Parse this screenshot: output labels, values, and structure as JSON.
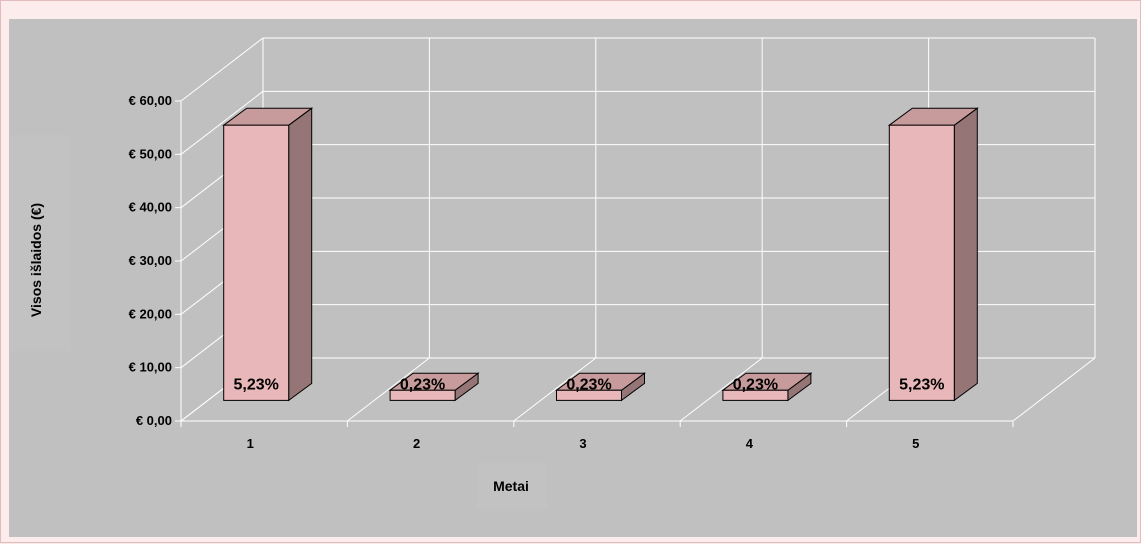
{
  "chart_data": {
    "type": "bar",
    "categories": [
      "1",
      "2",
      "3",
      "4",
      "5"
    ],
    "series": [
      {
        "values": [
          51.6,
          1.9,
          1.9,
          1.9,
          51.6
        ],
        "data_labels": [
          "5,23%",
          "0,23%",
          "0,23%",
          "0,23%",
          "5,23%"
        ]
      }
    ],
    "xlabel": "Metai",
    "ylabel": "Visos išlaidos (€)",
    "ylim": [
      0,
      60
    ],
    "yticks": [
      "€ 0,00",
      "€ 10,00",
      "€ 20,00",
      "€ 30,00",
      "€ 40,00",
      "€ 50,00",
      "€ 60,00"
    ],
    "ytick_values": [
      0,
      10,
      20,
      30,
      40,
      50,
      60
    ],
    "grid": true,
    "legend": "none",
    "style": "3d-column",
    "colors": {
      "bar_front": "#e8b7b9",
      "bar_side": "#957575",
      "bar_top": "#c79b9b",
      "plot_bg": "#c0c0c0",
      "grid": "#ffffff"
    }
  }
}
